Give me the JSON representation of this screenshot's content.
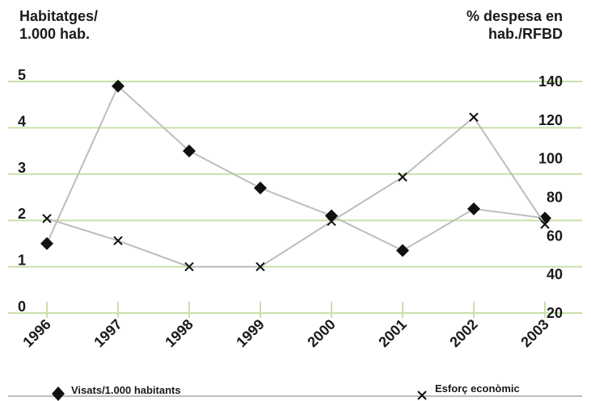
{
  "chart_data": {
    "type": "line",
    "categories": [
      "1996",
      "1997",
      "1998",
      "1999",
      "2000",
      "2001",
      "2002",
      "2003"
    ],
    "y_left": {
      "title_line1": "Habitatges/",
      "title_line2": "1.000 hab.",
      "range": [
        0,
        5
      ],
      "ticks": [
        "0",
        "1",
        "2",
        "3",
        "4",
        "5"
      ]
    },
    "y_right": {
      "title_line1": "% despesa en",
      "title_line2": "hab./RFBD",
      "range": [
        20,
        140
      ],
      "ticks": [
        "20",
        "40",
        "60",
        "80",
        "100",
        "120",
        "140"
      ]
    },
    "series": [
      {
        "name": "Visats/1.000 habitants",
        "axis": "left",
        "marker": "diamond",
        "values": [
          1.5,
          4.9,
          3.5,
          2.7,
          2.1,
          1.35,
          2.25,
          2.05
        ]
      },
      {
        "name": "Esforç econòmic",
        "axis": "right",
        "marker": "cross",
        "values": [
          69,
          57.5,
          44,
          44,
          67.5,
          90.5,
          121.5,
          66
        ]
      }
    ],
    "grid": true,
    "legend_position": "bottom",
    "colors": {
      "grid": "#c8e0a8",
      "line": "#bdbdbd",
      "marker": "#111111",
      "legend_line": "#bdbdbd"
    }
  }
}
